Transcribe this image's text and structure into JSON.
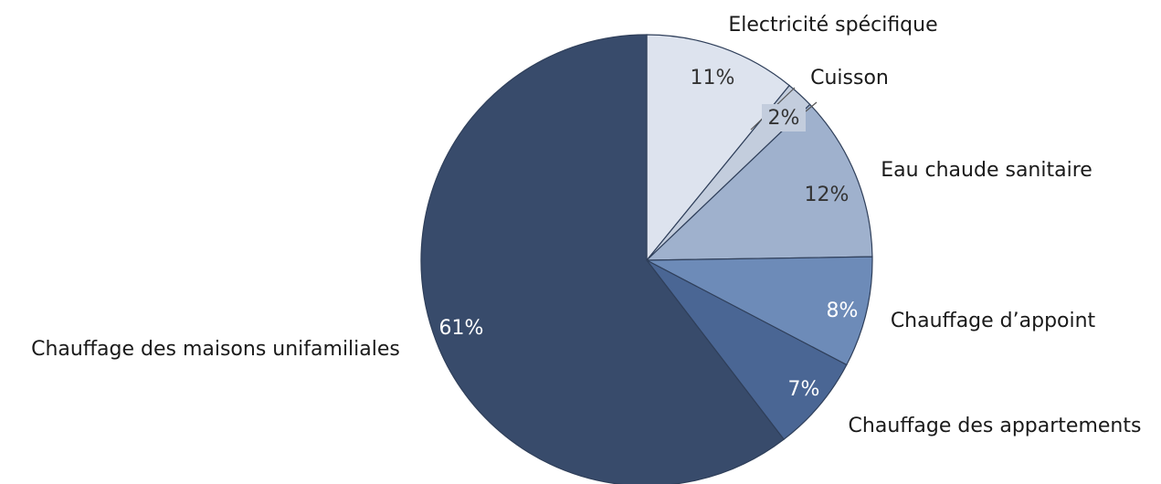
{
  "chart_data": {
    "type": "pie",
    "start_angle_deg": 0,
    "direction": "clockwise",
    "slices": [
      {
        "label": "Electricité spécifique",
        "value": 11,
        "value_label": "11%",
        "color": "#dde3ee",
        "value_text_color": "#333333"
      },
      {
        "label": "Cuisson",
        "value": 2,
        "value_label": "2%",
        "color": "#c3cddd",
        "value_text_color": "#333333"
      },
      {
        "label": "Eau chaude sanitaire",
        "value": 12,
        "value_label": "12%",
        "color": "#9fb1cd",
        "value_text_color": "#333333"
      },
      {
        "label": "Chauffage d’appoint",
        "value": 8,
        "value_label": "8%",
        "color": "#6d8bb8",
        "value_text_color": "#ffffff"
      },
      {
        "label": "Chauffage des appartements",
        "value": 7,
        "value_label": "7%",
        "color": "#4a6694",
        "value_text_color": "#ffffff"
      },
      {
        "label": "Chauffage des maisons unifamiliales",
        "value": 61,
        "value_label": "61%",
        "color": "#384b6b",
        "value_text_color": "#ffffff"
      }
    ]
  }
}
